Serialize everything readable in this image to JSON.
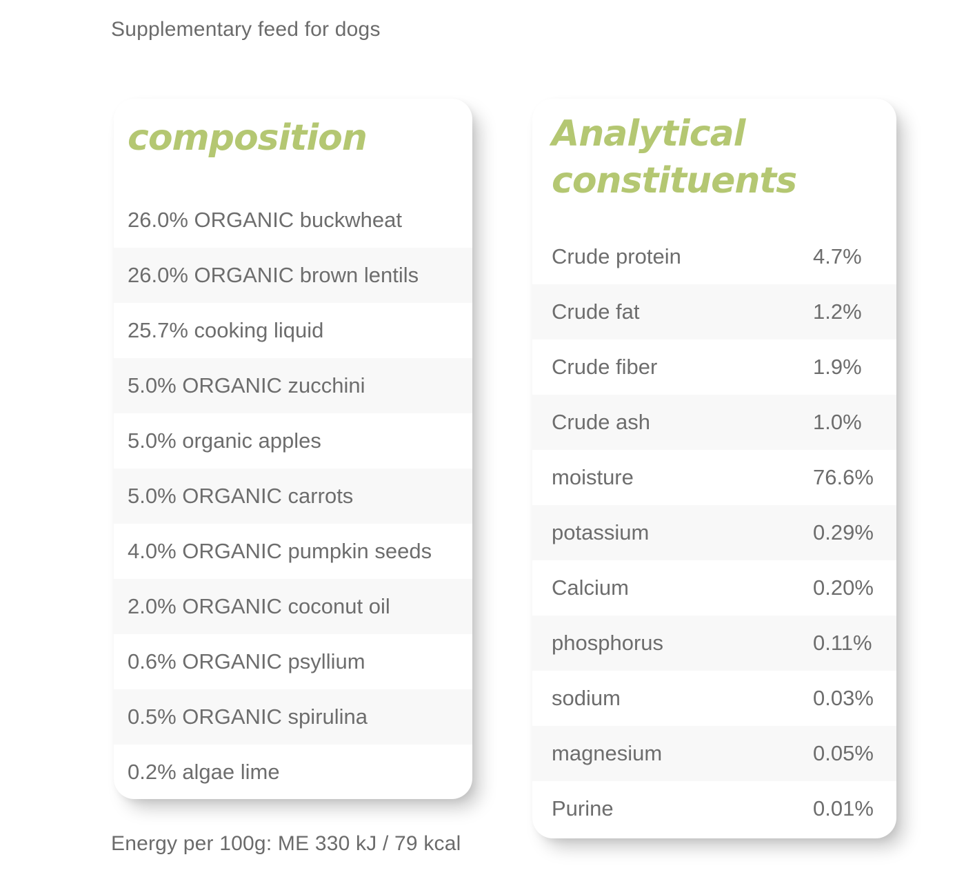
{
  "page": {
    "subtitle": "Supplementary feed for dogs",
    "energy_note": "Energy per 100g: ME 330 kJ / 79 kcal"
  },
  "colors": {
    "accent_green": "#b4c772",
    "text_gray": "#6d6d6d",
    "row_stripe": "#f8f8f8",
    "card_background": "#ffffff"
  },
  "composition": {
    "title": "composition",
    "items": [
      "26.0% ORGANIC buckwheat",
      "26.0% ORGANIC brown lentils",
      "25.7% cooking liquid",
      "5.0% ORGANIC zucchini",
      "5.0% organic apples",
      "5.0% ORGANIC carrots",
      "4.0% ORGANIC pumpkin seeds",
      "2.0% ORGANIC coconut oil",
      "0.6% ORGANIC psyllium",
      "0.5% ORGANIC spirulina",
      "0.2% algae lime"
    ]
  },
  "analytical": {
    "title": "Analytical constituents",
    "rows": [
      {
        "label": "Crude protein",
        "value": "4.7%"
      },
      {
        "label": "Crude fat",
        "value": "1.2%"
      },
      {
        "label": "Crude fiber",
        "value": "1.9%"
      },
      {
        "label": "Crude ash",
        "value": "1.0%"
      },
      {
        "label": "moisture",
        "value": "76.6%"
      },
      {
        "label": "potassium",
        "value": "0.29%"
      },
      {
        "label": "Calcium",
        "value": "0.20%"
      },
      {
        "label": "phosphorus",
        "value": "0.11%"
      },
      {
        "label": "sodium",
        "value": "0.03%"
      },
      {
        "label": "magnesium",
        "value": "0.05%"
      },
      {
        "label": "Purine",
        "value": "0.01%"
      }
    ]
  }
}
